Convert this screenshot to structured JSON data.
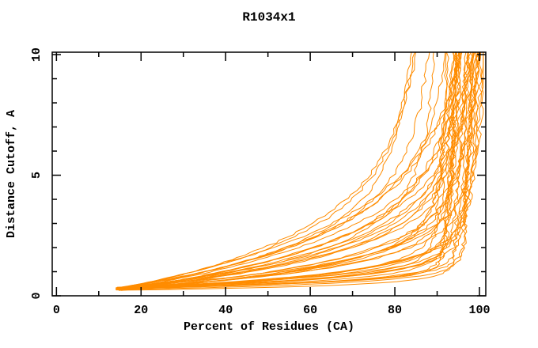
{
  "chart_data": {
    "type": "line",
    "title": "R1034x1",
    "xlabel": "Percent of Residues (CA)",
    "ylabel": "Distance Cutoff, A",
    "xlim": [
      -1,
      101.5
    ],
    "ylim": [
      0,
      10.1
    ],
    "x_major_ticks": [
      0,
      20,
      40,
      60,
      80,
      100
    ],
    "x_minor_ticks": [
      10,
      30,
      50,
      70,
      90
    ],
    "y_major_ticks": [
      0,
      5,
      10
    ],
    "y_minor_ticks": [
      1,
      2,
      3,
      4,
      6,
      7,
      8,
      9
    ],
    "grid": false,
    "legend": "none",
    "line_color": "#ff8c00",
    "axis_color": "#000000",
    "background": "#ffffff",
    "curve_model": "x(y) = xp - (xp - x0) * exp(-(y - y0)/tau) + dr*(y - y0); each curve rises from a common tip near (14.5%, 0.3A) and plateaus near xp percent",
    "curves": [
      {
        "x0": 14.0,
        "y0": 0.3,
        "xp": 80.0,
        "tau": 2.2,
        "dr": 0.55,
        "seed": 101
      },
      {
        "x0": 14.6,
        "y0": 0.26,
        "xp": 81.5,
        "tau": 2.5,
        "dr": 0.5,
        "seed": 102
      },
      {
        "x0": 14.2,
        "y0": 0.33,
        "xp": 79.0,
        "tau": 1.8,
        "dr": 0.5,
        "seed": 103
      },
      {
        "x0": 15.0,
        "y0": 0.28,
        "xp": 86.0,
        "tau": 1.5,
        "dr": 0.35,
        "seed": 104
      },
      {
        "x0": 14.4,
        "y0": 0.31,
        "xp": 84.5,
        "tau": 2.0,
        "dr": 0.4,
        "seed": 105
      },
      {
        "x0": 14.1,
        "y0": 0.27,
        "xp": 93.0,
        "tau": 0.45,
        "dr": 0.4,
        "seed": 1
      },
      {
        "x0": 14.8,
        "y0": 0.24,
        "xp": 95.5,
        "tau": 1.3,
        "dr": 0.3,
        "seed": 2
      },
      {
        "x0": 14.3,
        "y0": 0.31,
        "xp": 90.5,
        "tau": 0.25,
        "dr": 0.45,
        "seed": 3
      },
      {
        "x0": 15.2,
        "y0": 0.28,
        "xp": 96.5,
        "tau": 2.4,
        "dr": 0.25,
        "seed": 4
      },
      {
        "x0": 14.0,
        "y0": 0.33,
        "xp": 92.0,
        "tau": 0.8,
        "dr": 0.35,
        "seed": 5
      },
      {
        "x0": 15.5,
        "y0": 0.25,
        "xp": 94.0,
        "tau": 1.7,
        "dr": 0.45,
        "seed": 6
      },
      {
        "x0": 14.6,
        "y0": 0.29,
        "xp": 91.5,
        "tau": 0.35,
        "dr": 0.3,
        "seed": 7
      },
      {
        "x0": 14.2,
        "y0": 0.34,
        "xp": 97.5,
        "tau": 1.1,
        "dr": 0.2,
        "seed": 8
      },
      {
        "x0": 15.0,
        "y0": 0.26,
        "xp": 89.5,
        "tau": 0.6,
        "dr": 0.5,
        "seed": 9
      },
      {
        "x0": 14.5,
        "y0": 0.3,
        "xp": 95.0,
        "tau": 2.8,
        "dr": 0.3,
        "seed": 10
      },
      {
        "x0": 14.9,
        "y0": 0.23,
        "xp": 93.5,
        "tau": 0.2,
        "dr": 0.35,
        "seed": 11
      },
      {
        "x0": 14.1,
        "y0": 0.32,
        "xp": 96.0,
        "tau": 1.5,
        "dr": 0.4,
        "seed": 12
      },
      {
        "x0": 15.7,
        "y0": 0.27,
        "xp": 90.0,
        "tau": 0.95,
        "dr": 0.25,
        "seed": 13
      },
      {
        "x0": 14.4,
        "y0": 0.35,
        "xp": 94.5,
        "tau": 0.5,
        "dr": 0.55,
        "seed": 14
      },
      {
        "x0": 14.7,
        "y0": 0.22,
        "xp": 92.5,
        "tau": 2.0,
        "dr": 0.2,
        "seed": 15
      },
      {
        "x0": 15.3,
        "y0": 0.29,
        "xp": 97.0,
        "tau": 0.7,
        "dr": 0.3,
        "seed": 16
      },
      {
        "x0": 14.0,
        "y0": 0.25,
        "xp": 91.0,
        "tau": 1.9,
        "dr": 0.45,
        "seed": 17
      },
      {
        "x0": 14.6,
        "y0": 0.31,
        "xp": 95.8,
        "tau": 0.3,
        "dr": 0.25,
        "seed": 18
      },
      {
        "x0": 15.1,
        "y0": 0.28,
        "xp": 93.8,
        "tau": 1.2,
        "dr": 0.5,
        "seed": 19
      },
      {
        "x0": 14.3,
        "y0": 0.33,
        "xp": 89.0,
        "tau": 0.4,
        "dr": 0.35,
        "seed": 20
      },
      {
        "x0": 14.8,
        "y0": 0.24,
        "xp": 96.8,
        "tau": 2.2,
        "dr": 0.35,
        "seed": 21
      },
      {
        "x0": 14.2,
        "y0": 0.3,
        "xp": 92.8,
        "tau": 0.55,
        "dr": 0.2,
        "seed": 22
      },
      {
        "x0": 15.6,
        "y0": 0.26,
        "xp": 94.8,
        "tau": 1.6,
        "dr": 0.3,
        "seed": 23
      },
      {
        "x0": 14.5,
        "y0": 0.34,
        "xp": 90.8,
        "tau": 0.22,
        "dr": 0.5,
        "seed": 24
      },
      {
        "x0": 14.0,
        "y0": 0.27,
        "xp": 98.0,
        "tau": 1.0,
        "dr": 0.25,
        "seed": 25
      },
      {
        "x0": 15.0,
        "y0": 0.23,
        "xp": 93.2,
        "tau": 2.6,
        "dr": 0.4,
        "seed": 26
      },
      {
        "x0": 14.4,
        "y0": 0.32,
        "xp": 95.2,
        "tau": 0.65,
        "dr": 0.45,
        "seed": 27
      },
      {
        "x0": 14.9,
        "y0": 0.28,
        "xp": 91.8,
        "tau": 1.4,
        "dr": 0.3,
        "seed": 28
      },
      {
        "x0": 14.1,
        "y0": 0.25,
        "xp": 96.2,
        "tau": 0.28,
        "dr": 0.2,
        "seed": 29
      },
      {
        "x0": 15.4,
        "y0": 0.31,
        "xp": 88.5,
        "tau": 0.85,
        "dr": 0.55,
        "seed": 30
      },
      {
        "x0": 14.6,
        "y0": 0.29,
        "xp": 94.2,
        "tau": 1.8,
        "dr": 0.35,
        "seed": 31
      },
      {
        "x0": 14.3,
        "y0": 0.35,
        "xp": 92.2,
        "tau": 0.38,
        "dr": 0.25,
        "seed": 32
      },
      {
        "x0": 15.2,
        "y0": 0.22,
        "xp": 97.8,
        "tau": 1.25,
        "dr": 0.4,
        "seed": 33
      },
      {
        "x0": 14.0,
        "y0": 0.26,
        "xp": 90.2,
        "tau": 2.3,
        "dr": 0.3,
        "seed": 34
      },
      {
        "x0": 14.7,
        "y0": 0.3,
        "xp": 95.6,
        "tau": 0.48,
        "dr": 0.35,
        "seed": 35
      },
      {
        "x0": 15.8,
        "y0": 0.27,
        "xp": 93.6,
        "tau": 1.05,
        "dr": 0.2,
        "seed": 36
      },
      {
        "x0": 14.2,
        "y0": 0.24,
        "xp": 96.4,
        "tau": 0.75,
        "dr": 0.5,
        "seed": 37
      },
      {
        "x0": 14.5,
        "y0": 0.33,
        "xp": 91.2,
        "tau": 1.55,
        "dr": 0.4,
        "seed": 38
      },
      {
        "x0": 15.0,
        "y0": 0.28,
        "xp": 94.6,
        "tau": 0.33,
        "dr": 0.3,
        "seed": 39
      }
    ]
  }
}
